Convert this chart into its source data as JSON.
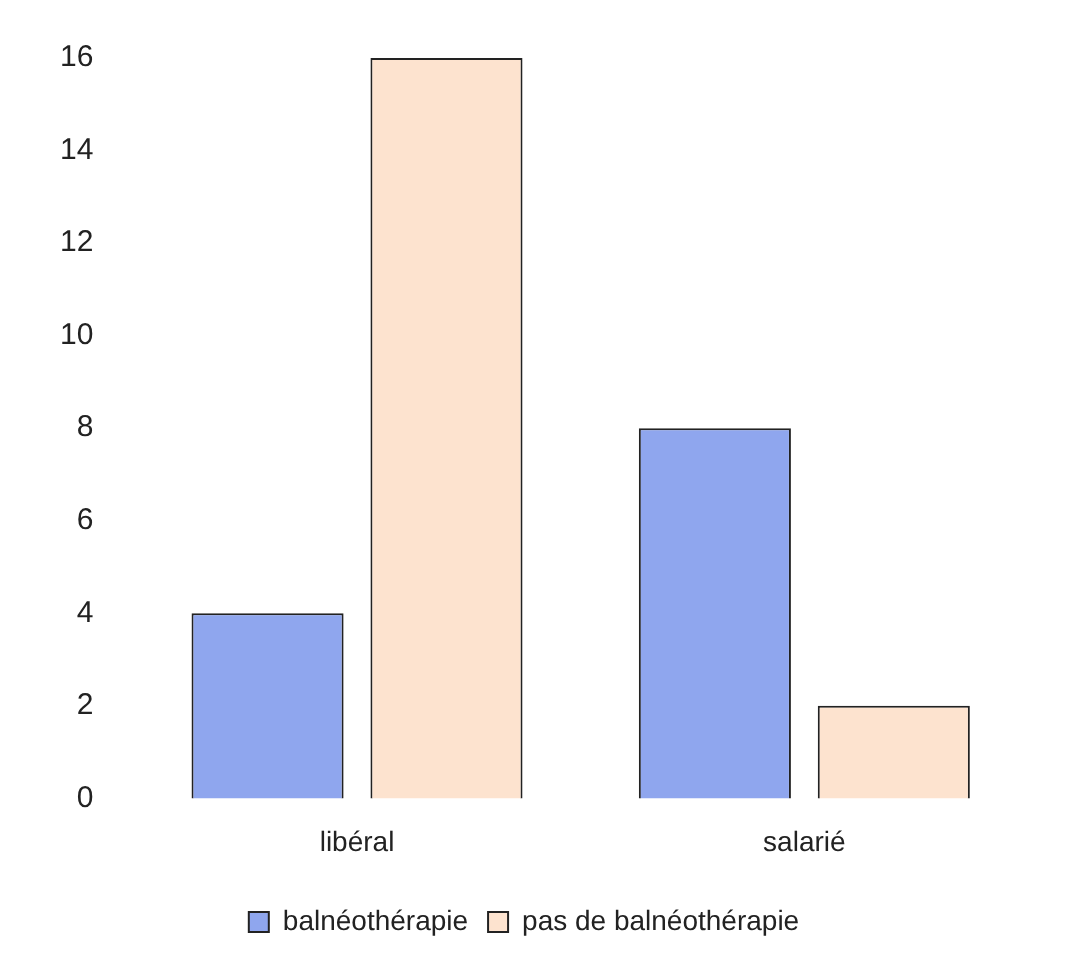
{
  "chart_data": {
    "type": "bar",
    "categories": [
      "libéral",
      "salarié"
    ],
    "series": [
      {
        "name": "balnéothérapie",
        "color": "#8fa6ee",
        "values": [
          4,
          8
        ]
      },
      {
        "name": "pas de balnéothérapie",
        "color": "#fde3cf",
        "values": [
          16,
          2
        ]
      }
    ],
    "ylim": [
      0,
      16
    ],
    "yticks": [
      0,
      2,
      4,
      6,
      8,
      10,
      12,
      14,
      16
    ],
    "grid": false,
    "legend": "bottom"
  }
}
